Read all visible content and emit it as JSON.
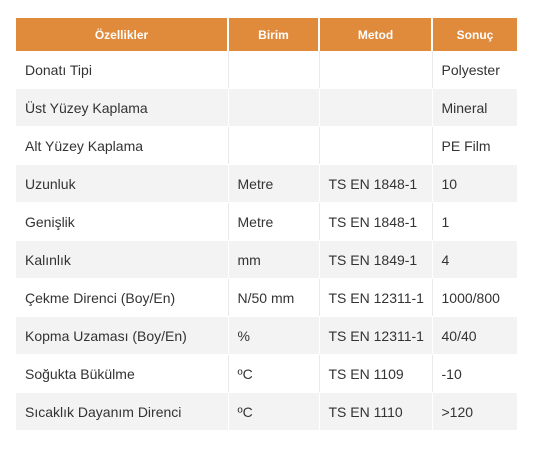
{
  "table": {
    "headers": [
      "Özellikler",
      "Birim",
      "Metod",
      "Sonuç"
    ],
    "rows": [
      [
        "Donatı Tipi",
        "",
        "",
        "Polyester"
      ],
      [
        "Üst Yüzey Kaplama",
        "",
        "",
        "Mineral"
      ],
      [
        "Alt Yüzey Kaplama",
        "",
        "",
        "PE Film"
      ],
      [
        "Uzunluk",
        "Metre",
        "TS EN 1848-1",
        "10"
      ],
      [
        "Genişlik",
        "Metre",
        "TS EN 1848-1",
        "1"
      ],
      [
        "Kalınlık",
        "mm",
        "TS EN 1849-1",
        "4"
      ],
      [
        "Çekme Direnci (Boy/En)",
        "N/50 mm",
        "TS EN 12311-1",
        "1000/800"
      ],
      [
        "Kopma Uzaması (Boy/En)",
        "%",
        "TS EN 12311-1",
        "40/40"
      ],
      [
        "Soğukta Bükülme",
        "ºC",
        "TS EN 1109",
        "-10"
      ],
      [
        "Sıcaklık Dayanım Direnci",
        "ºC",
        "TS EN 1110",
        ">120"
      ]
    ]
  },
  "colors": {
    "header_bg": "#e08a3c",
    "header_text": "#ffffff",
    "row_alt_bg": "#f3f3f3",
    "text": "#333333"
  }
}
